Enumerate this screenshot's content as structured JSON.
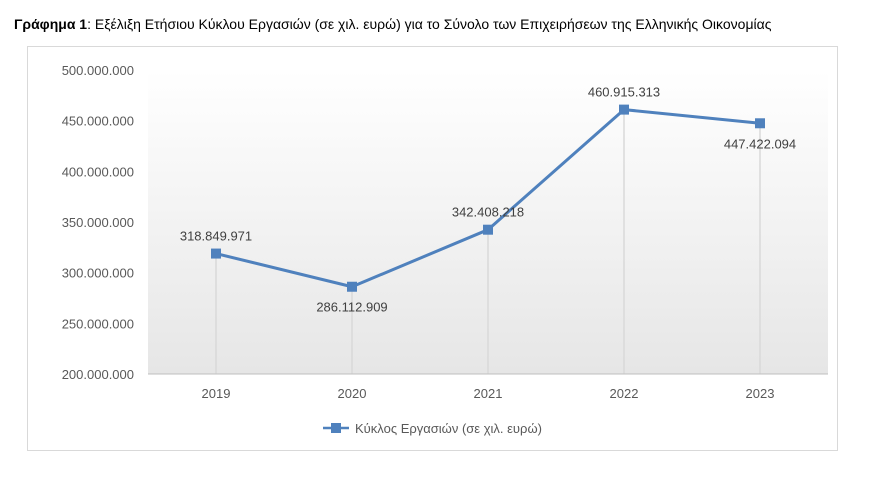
{
  "caption": {
    "bold": "Γράφημα 1",
    "rest": ": Εξέλιξη Ετήσιου Κύκλου Εργασιών (σε χιλ. ευρώ) για το Σύνολο των Επιχειρήσεων της Ελληνικής Οικονομίας"
  },
  "chart_data": {
    "type": "line",
    "categories": [
      "2019",
      "2020",
      "2021",
      "2022",
      "2023"
    ],
    "series": [
      {
        "name": "Κύκλος Εργασιών (σε χιλ. ευρώ)",
        "values": [
          318849971,
          286112909,
          342408218,
          460915313,
          447422094
        ],
        "labels": [
          "318.849.971",
          "286.112.909",
          "342.408.218",
          "460.915.313",
          "447.422.094"
        ],
        "color": "#4f81bd"
      }
    ],
    "ylim": [
      200000000,
      500000000
    ],
    "yticks": [
      {
        "value": 500000000,
        "label": "500.000.000"
      },
      {
        "value": 450000000,
        "label": "450.000.000"
      },
      {
        "value": 400000000,
        "label": "400.000.000"
      },
      {
        "value": 350000000,
        "label": "350.000.000"
      },
      {
        "value": 300000000,
        "label": "300.000.000"
      },
      {
        "value": 250000000,
        "label": "250.000.000"
      },
      {
        "value": 200000000,
        "label": "200.000.000"
      }
    ],
    "grid": false,
    "legend_position": "bottom"
  }
}
